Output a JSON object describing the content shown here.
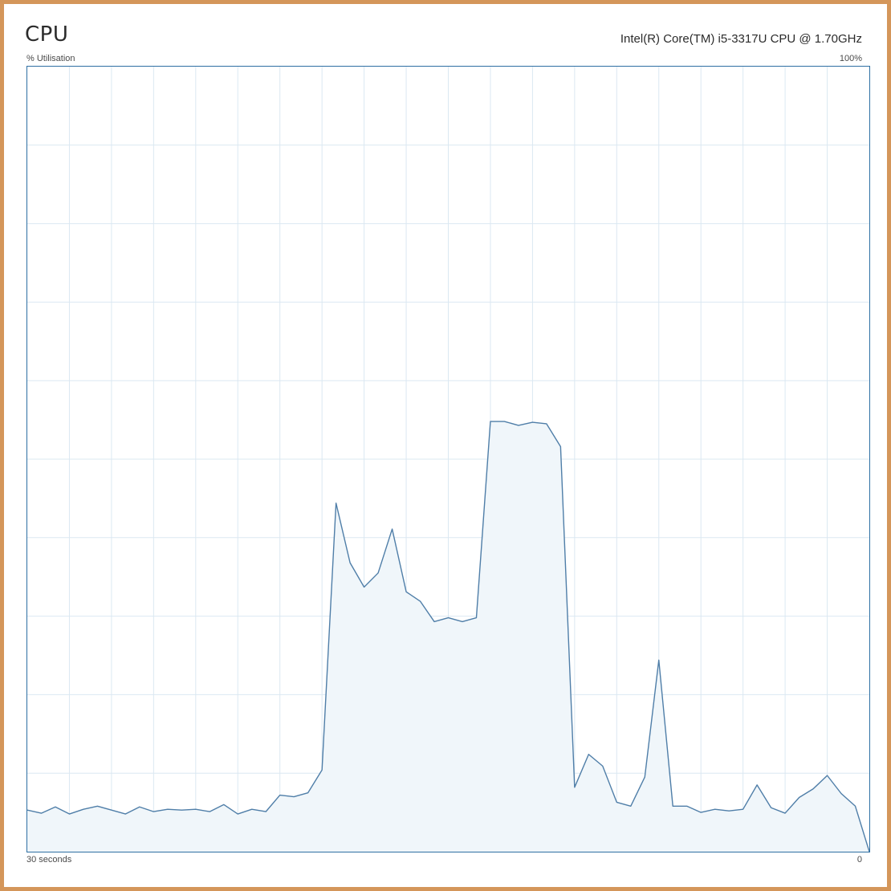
{
  "header": {
    "title": "CPU",
    "cpu_model": "Intel(R) Core(TM) i5-3317U CPU @ 1.70GHz"
  },
  "graph": {
    "y_label": "% Utilisation",
    "y_max_label": "100%",
    "x_start_label": "30 seconds",
    "x_end_label": "0"
  },
  "colors": {
    "frame_border": "#d4965a",
    "graph_border": "#2e6fa3",
    "line": "#4f7ea8",
    "fill": "#f0f6fa",
    "grid": "#dbe8f2"
  },
  "chart_data": {
    "type": "area",
    "xlabel": "",
    "ylabel": "% Utilisation",
    "xlim": [
      30,
      0
    ],
    "ylim": [
      0,
      100
    ],
    "grid": true,
    "grid_divisions": {
      "x": 20,
      "y": 10
    },
    "x": [
      30,
      29.5,
      29,
      28.5,
      28,
      27.5,
      27,
      26.5,
      26,
      25.5,
      25,
      24.5,
      24,
      23.5,
      23,
      22.5,
      22,
      21.5,
      21,
      20.5,
      20,
      19.5,
      19,
      18.5,
      18,
      17.5,
      17,
      16.5,
      16,
      15.5,
      15,
      14.5,
      14,
      13.5,
      13,
      12.5,
      12,
      11.5,
      11,
      10.5,
      10,
      9.5,
      9,
      8.5,
      8,
      7.5,
      7,
      6.5,
      6,
      5.5,
      5,
      4.5,
      4,
      3.5,
      3,
      2.5,
      2,
      1.5,
      1,
      0.5,
      0
    ],
    "series": [
      {
        "values": [
          5.3,
          4.9,
          5.7,
          4.8,
          5.4,
          5.8,
          5.3,
          4.8,
          5.7,
          5.1,
          5.4,
          5.3,
          5.4,
          5.1,
          6.0,
          4.8,
          5.4,
          5.1,
          7.2,
          7.0,
          7.5,
          10.4,
          44.4,
          36.8,
          33.7,
          35.5,
          41.1,
          33.1,
          31.9,
          29.3,
          29.8,
          29.3,
          29.8,
          54.8,
          54.8,
          54.3,
          54.7,
          54.5,
          51.6,
          8.2,
          12.4,
          10.9,
          6.3,
          5.8,
          9.5,
          24.4,
          5.8,
          5.8,
          5.0,
          5.4,
          5.2,
          5.4,
          8.5,
          5.6,
          4.9,
          6.9,
          8.0,
          9.7,
          7.4,
          5.8,
          0
        ]
      }
    ]
  }
}
